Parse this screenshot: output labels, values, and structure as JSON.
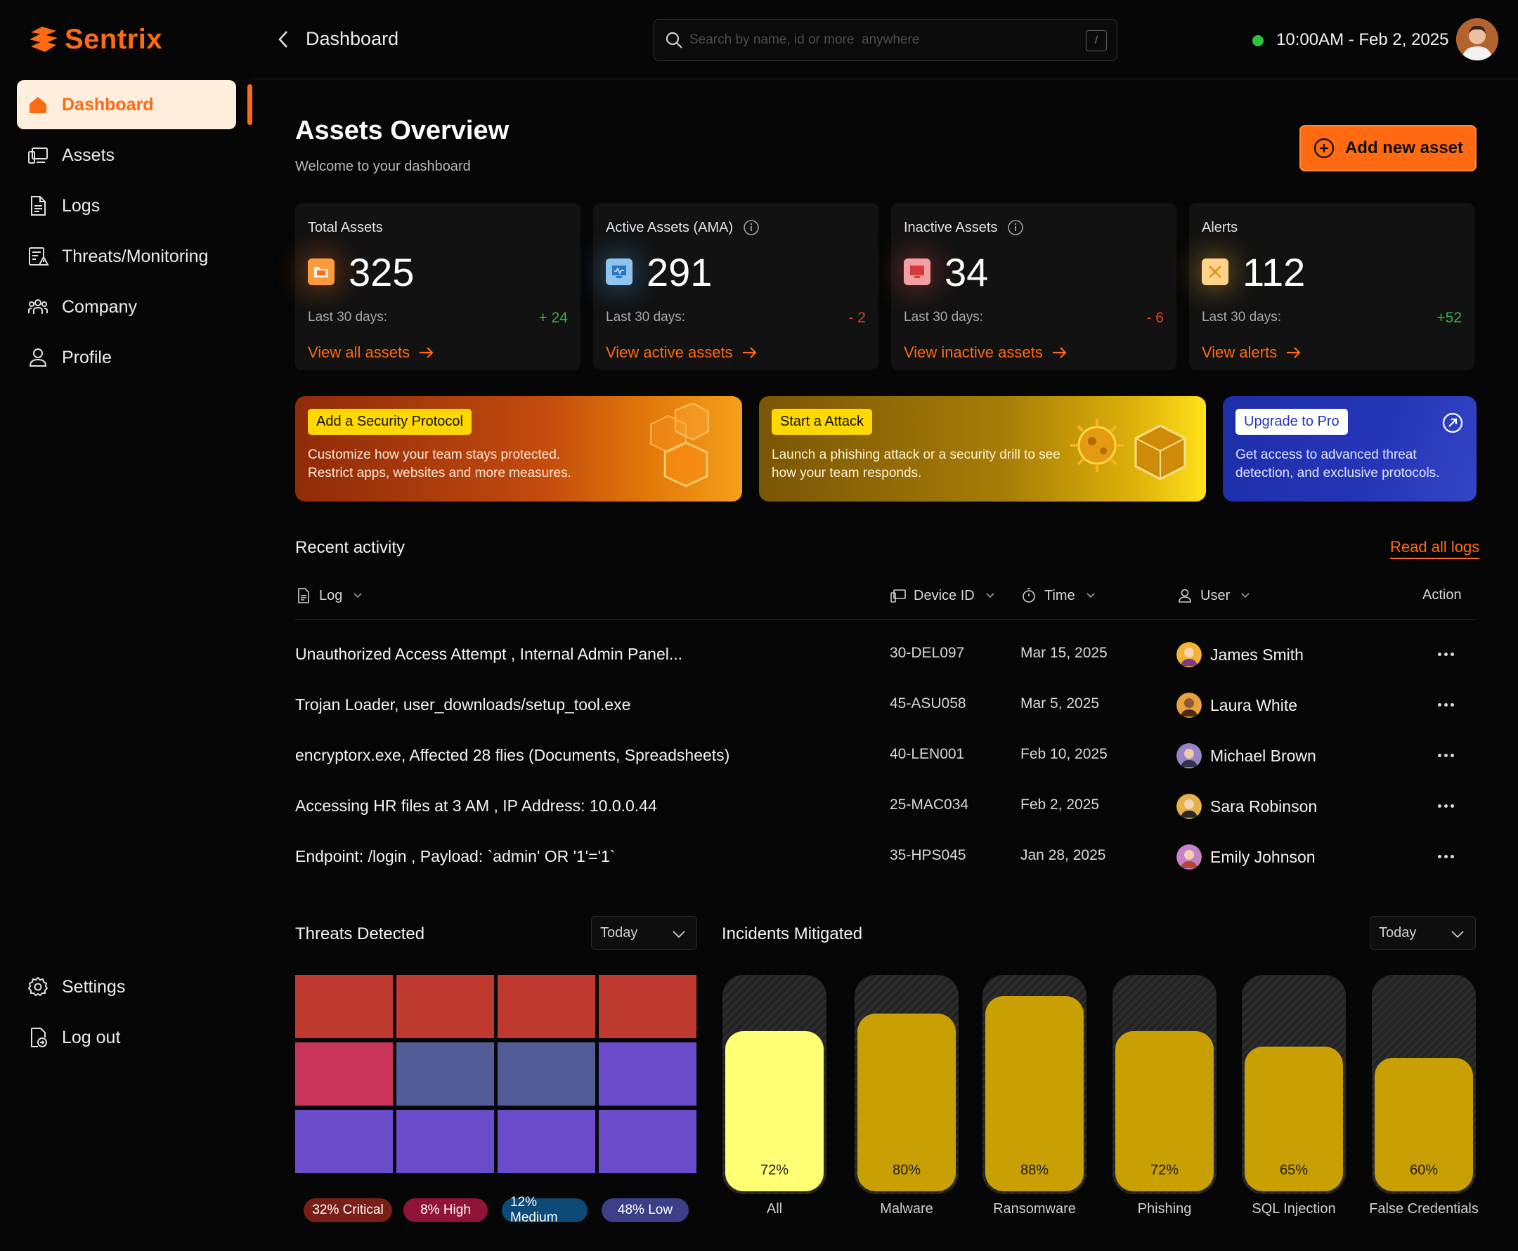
{
  "app": {
    "name": "Sentrix",
    "brand_color": "#ff6a13"
  },
  "sidebar": {
    "items": [
      {
        "label": "Dashboard",
        "icon": "home-icon",
        "active": true
      },
      {
        "label": "Assets",
        "icon": "devices-icon"
      },
      {
        "label": "Logs",
        "icon": "document-icon"
      },
      {
        "label": "Threats/Monitoring",
        "icon": "threat-monitor-icon"
      },
      {
        "label": "Company",
        "icon": "team-icon"
      },
      {
        "label": "Profile",
        "icon": "user-icon"
      }
    ],
    "bottom": [
      {
        "label": "Settings",
        "icon": "gear-icon"
      },
      {
        "label": "Log out",
        "icon": "logout-icon"
      }
    ]
  },
  "header": {
    "title": "Dashboard",
    "search_placeholder": "Search by name, id or more  anywhere",
    "search_shortcut": "/",
    "datetime": "10:00AM - Feb 2, 2025",
    "status_color": "#2fc23b"
  },
  "overview": {
    "title": "Assets Overview",
    "subtitle": "Welcome to your dashboard",
    "add_button": "Add new asset"
  },
  "stats": [
    {
      "label": "Total Assets",
      "value": "325",
      "period": "Last 30 days:",
      "delta": "+ 24",
      "trend": "up",
      "link": "View all assets",
      "icon": "folder-icon",
      "info": false
    },
    {
      "label": "Active Assets (AMA)",
      "value": "291",
      "period": "Last 30 days:",
      "delta": "- 2",
      "trend": "down",
      "link": "View active assets",
      "icon": "monitor-active-icon",
      "info": true
    },
    {
      "label": "Inactive Assets",
      "value": "34",
      "period": "Last 30 days:",
      "delta": "- 6",
      "trend": "down",
      "link": "View inactive assets",
      "icon": "monitor-inactive-icon",
      "info": true
    },
    {
      "label": "Alerts",
      "value": "112",
      "period": "Last 30 days:",
      "delta": "+52",
      "trend": "up",
      "link": "View alerts",
      "icon": "alert-icon",
      "info": false
    }
  ],
  "promos": [
    {
      "tag": "Add a Security Protocol",
      "text": "Customize how your team stays protected. Restrict apps, websites and more measures."
    },
    {
      "tag": "Start a Attack",
      "text": "Launch a phishing attack or a security drill to see how your team responds."
    },
    {
      "tag": "Upgrade to Pro",
      "text": "Get access to advanced threat detection, and exclusive protocols."
    }
  ],
  "activity": {
    "title": "Recent activity",
    "read_all": "Read all logs",
    "columns": {
      "log": "Log",
      "device": "Device ID",
      "time": "Time",
      "user": "User",
      "action": "Action"
    },
    "rows": [
      {
        "log": "Unauthorized Access Attempt , Internal Admin Panel...",
        "device": "30-DEL097",
        "time": "Mar 15, 2025",
        "user": "James Smith",
        "avatar_color": "#f2b233"
      },
      {
        "log": "Trojan Loader,  user_downloads/setup_tool.exe",
        "device": "45-ASU058",
        "time": "Mar 5, 2025",
        "user": "Laura White",
        "avatar_color": "#e8a23a"
      },
      {
        "log": "encryptorx.exe,  Affected 28 flies (Documents, Spreadsheets)",
        "device": "40-LEN001",
        "time": "Feb 10, 2025",
        "user": "Michael Brown",
        "avatar_color": "#9a84c8"
      },
      {
        "log": "Accessing HR files at 3 AM , IP Address: 10.0.0.44",
        "device": "25-MAC034",
        "time": "Feb 2, 2025",
        "user": "Sara Robinson",
        "avatar_color": "#e6b04a"
      },
      {
        "log": "Endpoint: /login , Payload: `admin' OR '1'='1`",
        "device": "35-HPS045",
        "time": "Jan 28, 2025",
        "user": "Emily Johnson",
        "avatar_color": "#c783c7"
      }
    ]
  },
  "threats": {
    "title": "Threats Detected",
    "period": "Today",
    "grid_colors": [
      [
        "#c0392f",
        "#c0392f",
        "#c0392f",
        "#c0392f"
      ],
      [
        "#c8345a",
        "#525c96",
        "#525c96",
        "#6a4bc9"
      ],
      [
        "#6a4bc9",
        "#6a4bc9",
        "#6a4bc9",
        "#6a4bc9"
      ]
    ],
    "legend": [
      {
        "label": "32% Critical",
        "color": "#7a1f17"
      },
      {
        "label": "8% High",
        "color": "#8f1437"
      },
      {
        "label": "12% Medium",
        "color": "#0e4a78"
      },
      {
        "label": "48% Low",
        "color": "#3b3f88"
      }
    ]
  },
  "chart_data": {
    "type": "bar",
    "title": "Incidents Mitigated",
    "period": "Today",
    "categories": [
      "All",
      "Malware",
      "Ransomware",
      "Phishing",
      "SQL Injection",
      "False Credentials"
    ],
    "values": [
      72,
      80,
      88,
      72,
      65,
      60
    ],
    "value_labels": [
      "72%",
      "80%",
      "88%",
      "72%",
      "65%",
      "60%"
    ],
    "highlight_index": 0,
    "colors": {
      "highlight": "#ffff74",
      "default": "#c9a004"
    },
    "ylim": [
      0,
      100
    ]
  }
}
